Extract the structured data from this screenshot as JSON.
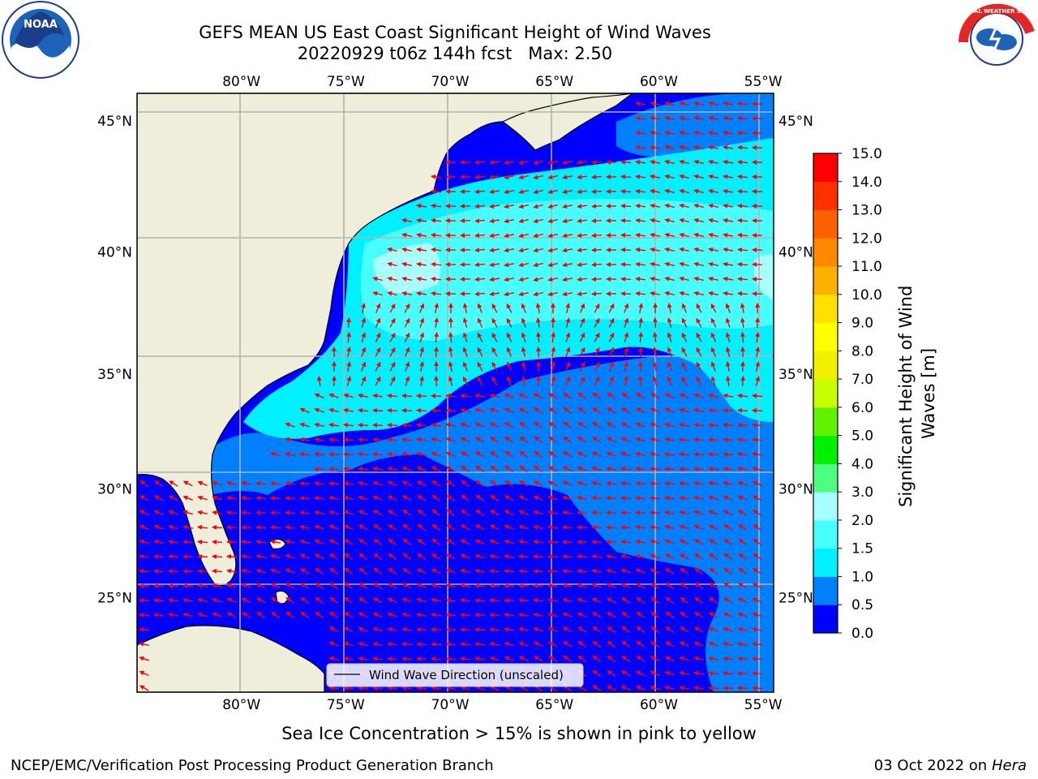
{
  "title": {
    "line1": "GEFS MEAN US East Coast Significant Height of Wind Waves",
    "line2": "20220929 t06z 144h fcst   Max: 2.50"
  },
  "axes": {
    "lon_labels": [
      "80°W",
      "75°W",
      "70°W",
      "65°W",
      "60°W",
      "55°W"
    ],
    "lon_values": [
      -80,
      -75,
      -70,
      -65,
      -60,
      -55
    ],
    "lat_labels": [
      "45°N",
      "40°N",
      "35°N",
      "30°N",
      "25°N"
    ],
    "lat_values": [
      45,
      40,
      35,
      30,
      25
    ],
    "lon_range": [
      -85,
      -54.5
    ],
    "lat_range": [
      20.5,
      46
    ]
  },
  "legend": {
    "label": "Wind Wave Direction (unscaled)"
  },
  "colorbar": {
    "label_line1": "Significant Height of Wind",
    "label_line2": "Waves [m]",
    "ticks": [
      "0.0",
      "0.5",
      "1.0",
      "1.5",
      "2.0",
      "3.0",
      "4.0",
      "5.0",
      "6.0",
      "7.0",
      "8.0",
      "9.0",
      "10.0",
      "11.0",
      "12.0",
      "13.0",
      "14.0",
      "15.0"
    ],
    "colors": [
      "#0000ff",
      "#0080ff",
      "#00f0ff",
      "#47ffff",
      "#a8ffff",
      "#4dff80",
      "#00f000",
      "#60f000",
      "#c8ff00",
      "#f0f000",
      "#ffff00",
      "#ffe000",
      "#ffb000",
      "#ff8800",
      "#ff6000",
      "#ff3000",
      "#ff0000"
    ]
  },
  "colors": {
    "land": "#efeedb",
    "grid": "#b2b2b2",
    "arrow": "#ff0000",
    "coast": "#000000"
  },
  "subtitle": "Sea Ice Concentration > 15% is shown in pink to yellow",
  "footer": {
    "left": "NCEP/EMC/Verification Post Processing Product Generation Branch",
    "right_date": "03 Oct 2022 on ",
    "right_host": "Hera"
  },
  "logos": {
    "noaa_text": "NOAA",
    "nws_text": "NATIONAL WEATHER SERVICE"
  }
}
